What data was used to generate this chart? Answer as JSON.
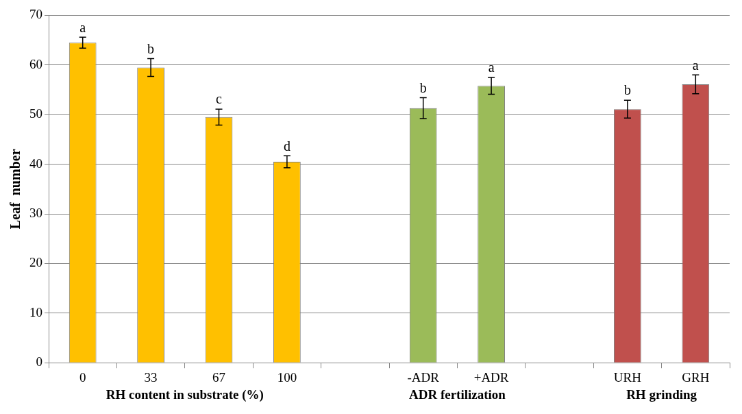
{
  "chart_data": {
    "type": "bar",
    "ylabel": "Leaf  number",
    "categories": [
      "0",
      "33",
      "67",
      "100",
      null,
      "-ADR",
      "+ADR",
      null,
      "URH",
      "GRH"
    ],
    "values": [
      64.5,
      59.5,
      49.5,
      40.5,
      null,
      51.3,
      55.8,
      null,
      51.1,
      56.1
    ],
    "errors": [
      1.1,
      1.8,
      1.6,
      1.2,
      null,
      2.1,
      1.7,
      null,
      1.8,
      1.9
    ],
    "colors": [
      "#ffc000",
      "#ffc000",
      "#ffc000",
      "#ffc000",
      "#ffffff",
      "#9bbb59",
      "#9bbb59",
      "#ffffff",
      "#c0504d",
      "#c0504d"
    ],
    "ylim": [
      0,
      70
    ],
    "yticks": [
      0,
      10,
      20,
      30,
      40,
      50,
      60,
      70
    ],
    "grid": "y",
    "legend": false,
    "annotations": [
      "RH content in substrate (%)",
      "ADR fertilization",
      "RH grinding",
      {
        "text": "a",
        "x": "0",
        "y": 65.6
      },
      {
        "text": "b",
        "x": "33",
        "y": 61.3
      },
      {
        "text": "c",
        "x": "67",
        "y": 51.1
      },
      {
        "text": "d",
        "x": "100",
        "y": 41.7
      },
      {
        "text": "b",
        "x": "-ADR",
        "y": 53.4
      },
      {
        "text": "a",
        "x": "+ADR",
        "y": 57.5
      },
      {
        "text": "b",
        "x": "URH",
        "y": 52.9
      },
      {
        "text": "a",
        "x": "GRH",
        "y": 58.0
      }
    ]
  }
}
